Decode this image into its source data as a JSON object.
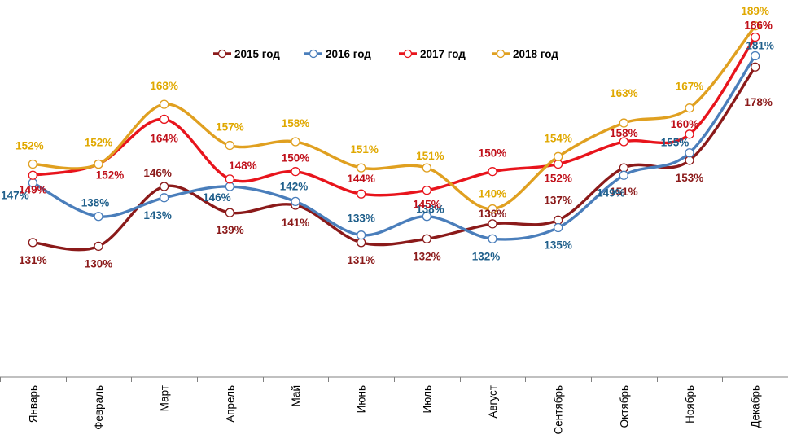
{
  "chart_data": {
    "type": "line",
    "categories": [
      "Январь",
      "Февраль",
      "Март",
      "Апрель",
      "Май",
      "Июнь",
      "Июль",
      "Август",
      "Сентябрь",
      "Октябрь",
      "Ноябрь",
      "Декабрь"
    ],
    "ylim": [
      95,
      192
    ],
    "legend_position": "top",
    "grid": false,
    "series": [
      {
        "name": "2015 год",
        "color": "#8B1A1A",
        "values": [
          131,
          130,
          146,
          139,
          141,
          131,
          132,
          136,
          137,
          151,
          153,
          178
        ],
        "labels": [
          "131%",
          "130%",
          "146%",
          "139%",
          "141%",
          "131%",
          "132%",
          "136%",
          "137%",
          "151%",
          "153%",
          "178%"
        ]
      },
      {
        "name": "2016 год",
        "color": "#4A7EBB",
        "values": [
          147,
          138,
          143,
          146,
          142,
          133,
          138,
          132,
          135,
          149,
          155,
          181
        ],
        "labels": [
          "147%",
          "138%",
          "143%",
          "146%",
          "142%",
          "133%",
          "138%",
          "132%",
          "135%",
          "149%",
          "155%",
          "181%"
        ]
      },
      {
        "name": "2017 год",
        "color": "#E8141C",
        "values": [
          149,
          152,
          164,
          148,
          150,
          144,
          145,
          150,
          152,
          158,
          160,
          186
        ],
        "labels": [
          "149%",
          "152%",
          "164%",
          "148%",
          "150%",
          "144%",
          "145%",
          "150%",
          "152%",
          "158%",
          "160%",
          "186%"
        ]
      },
      {
        "name": "2018 год",
        "color": "#E0A020",
        "values": [
          152,
          152,
          168,
          157,
          158,
          151,
          151,
          140,
          154,
          163,
          167,
          189
        ],
        "labels": [
          "152%",
          "152%",
          "168%",
          "157%",
          "158%",
          "151%",
          "151%",
          "140%",
          "154%",
          "163%",
          "167%",
          "189%"
        ]
      }
    ]
  },
  "label_colors": {
    "2015 год": "#8B1A1A",
    "2016 год": "#1F5F8B",
    "2017 год": "#C0101A",
    "2018 год": "#E0A800"
  }
}
